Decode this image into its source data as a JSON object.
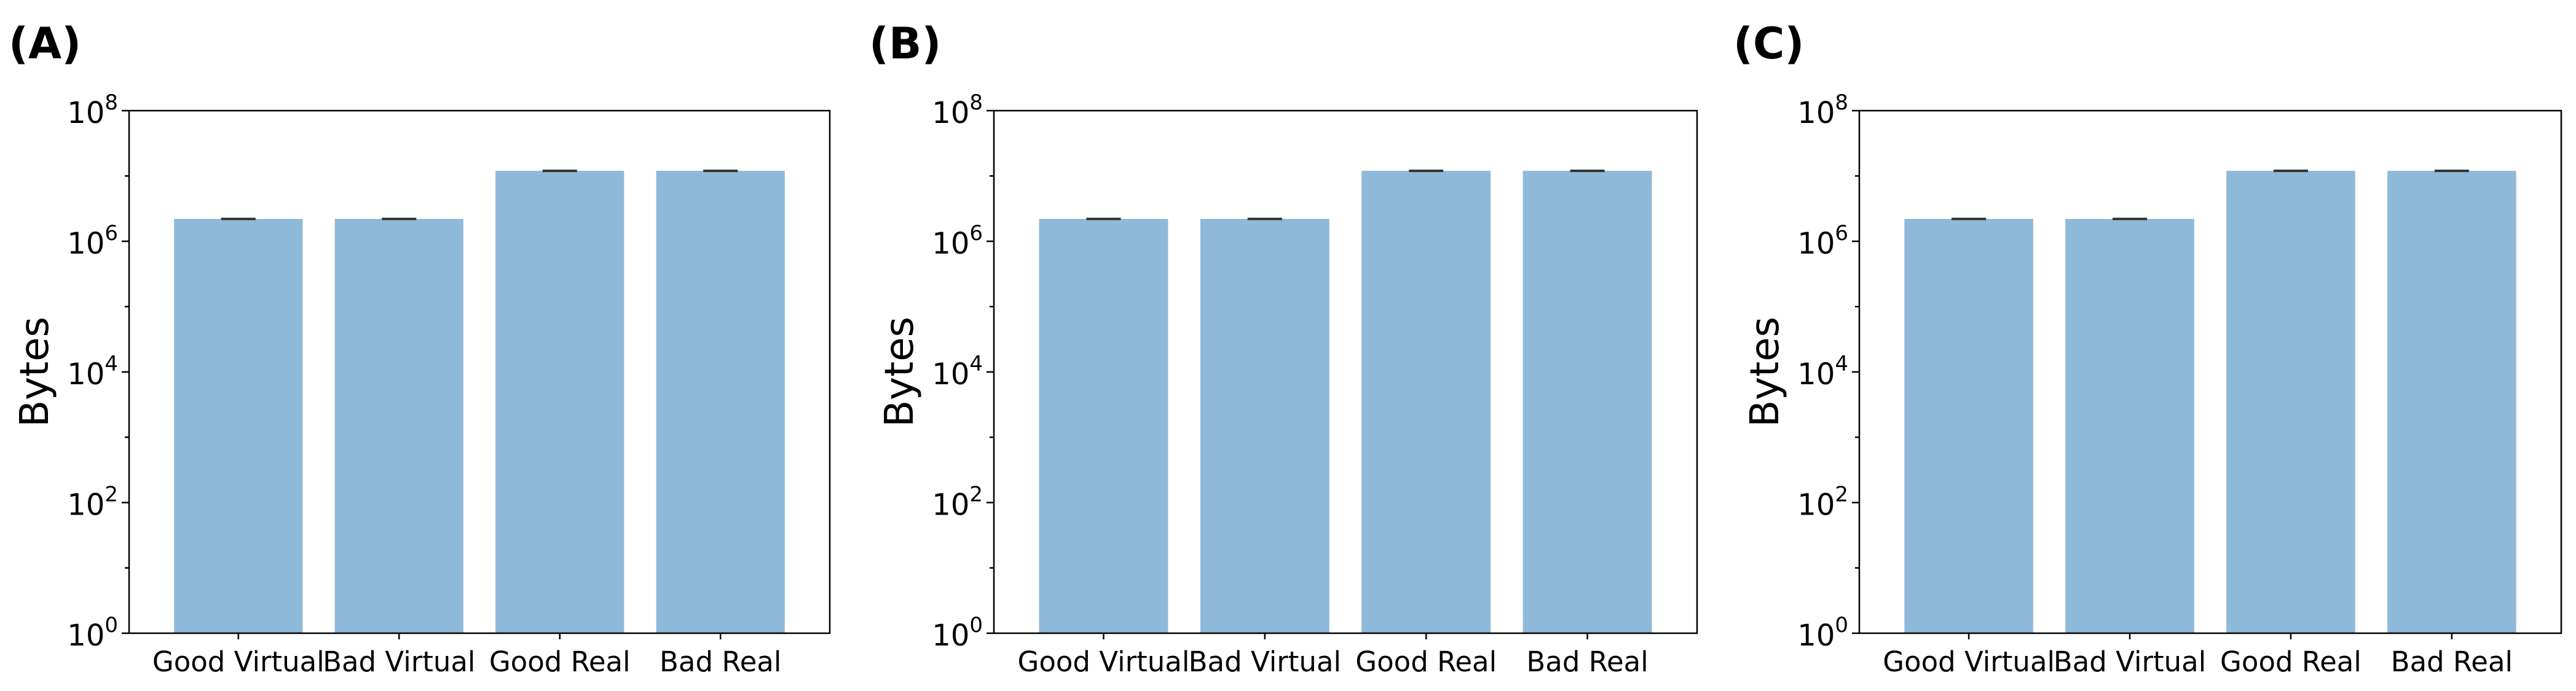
{
  "colors": {
    "bar": "#8fb9d9",
    "error_bar": "#333333",
    "axis": "#000000",
    "background": "#ffffff"
  },
  "chart_data": [
    {
      "panel_label": "(A)",
      "type": "bar",
      "categories": [
        "Good Virtual",
        "Bad Virtual",
        "Good Real",
        "Bad Real"
      ],
      "values": [
        2200000,
        2200000,
        12000000,
        12000000
      ],
      "error_bars": true,
      "ylabel": "Bytes",
      "yscale": "log",
      "ylim": [
        1,
        100000000
      ],
      "yticks": [
        {
          "base": "10",
          "exp": "0",
          "value": 1
        },
        {
          "base": "10",
          "exp": "2",
          "value": 100
        },
        {
          "base": "10",
          "exp": "4",
          "value": 10000
        },
        {
          "base": "10",
          "exp": "6",
          "value": 1000000
        },
        {
          "base": "10",
          "exp": "8",
          "value": 100000000
        }
      ],
      "grid": false
    },
    {
      "panel_label": "(B)",
      "type": "bar",
      "categories": [
        "Good Virtual",
        "Bad Virtual",
        "Good Real",
        "Bad Real"
      ],
      "values": [
        2200000,
        2200000,
        12000000,
        12000000
      ],
      "error_bars": true,
      "ylabel": "Bytes",
      "yscale": "log",
      "ylim": [
        1,
        100000000
      ],
      "yticks": [
        {
          "base": "10",
          "exp": "0",
          "value": 1
        },
        {
          "base": "10",
          "exp": "2",
          "value": 100
        },
        {
          "base": "10",
          "exp": "4",
          "value": 10000
        },
        {
          "base": "10",
          "exp": "6",
          "value": 1000000
        },
        {
          "base": "10",
          "exp": "8",
          "value": 100000000
        }
      ],
      "grid": false
    },
    {
      "panel_label": "(C)",
      "type": "bar",
      "categories": [
        "Good Virtual",
        "Bad Virtual",
        "Good Real",
        "Bad Real"
      ],
      "values": [
        2200000,
        2200000,
        12000000,
        12000000
      ],
      "error_bars": true,
      "ylabel": "Bytes",
      "yscale": "log",
      "ylim": [
        1,
        100000000
      ],
      "yticks": [
        {
          "base": "10",
          "exp": "0",
          "value": 1
        },
        {
          "base": "10",
          "exp": "2",
          "value": 100
        },
        {
          "base": "10",
          "exp": "4",
          "value": 10000
        },
        {
          "base": "10",
          "exp": "6",
          "value": 1000000
        },
        {
          "base": "10",
          "exp": "8",
          "value": 100000000
        }
      ],
      "grid": false
    }
  ]
}
